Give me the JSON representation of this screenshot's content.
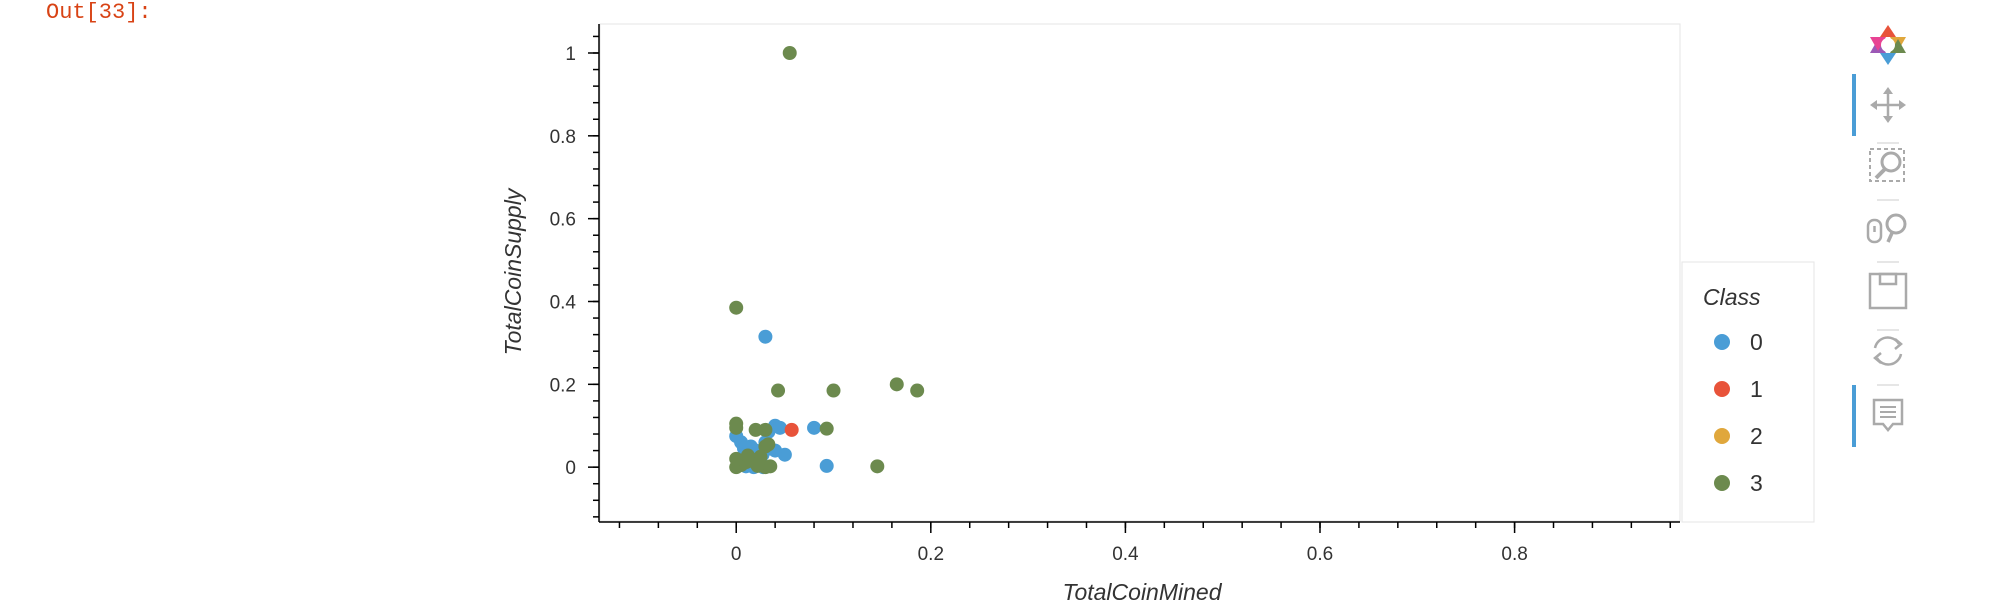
{
  "cell": {
    "prompt": "Out[33]:"
  },
  "toolbar": {
    "tools": [
      {
        "name": "bokeh-logo",
        "icon": "bokeh-logo-icon"
      },
      {
        "name": "pan",
        "icon": "pan-icon",
        "active": true
      },
      {
        "name": "box-zoom",
        "icon": "box-zoom-icon",
        "active": false
      },
      {
        "name": "wheel-zoom",
        "icon": "wheel-zoom-icon",
        "active": false
      },
      {
        "name": "save",
        "icon": "save-icon",
        "active": false
      },
      {
        "name": "reset",
        "icon": "reset-icon",
        "active": false
      },
      {
        "name": "hover",
        "icon": "hover-icon",
        "active": true
      }
    ]
  },
  "chart_data": {
    "type": "scatter",
    "xlabel": "TotalCoinMined",
    "ylabel": "TotalCoinSupply",
    "xlim": [
      -0.14,
      0.97
    ],
    "ylim": [
      -0.13,
      1.07
    ],
    "xticks": [
      0,
      0.2,
      0.4,
      0.6,
      0.8
    ],
    "xtick_labels": [
      "0",
      "0.2",
      "0.4",
      "0.6",
      "0.8"
    ],
    "yticks": [
      0,
      0.2,
      0.4,
      0.6,
      0.8,
      1
    ],
    "ytick_labels": [
      "0",
      "0.2",
      "0.4",
      "0.6",
      "0.8",
      "1"
    ],
    "legend": {
      "title": "Class",
      "placement": "right"
    },
    "series": [
      {
        "name": "0",
        "color": "#4a9dd6",
        "points": [
          [
            0.0,
            0.075
          ],
          [
            0.005,
            0.06
          ],
          [
            0.008,
            0.045
          ],
          [
            0.01,
            0.03
          ],
          [
            0.012,
            0.02
          ],
          [
            0.015,
            0.05
          ],
          [
            0.02,
            0.04
          ],
          [
            0.025,
            0.01
          ],
          [
            0.018,
            0.0
          ],
          [
            0.022,
            0.005
          ],
          [
            0.03,
            0.06
          ],
          [
            0.035,
            0.045
          ],
          [
            0.04,
            0.1
          ],
          [
            0.045,
            0.095
          ],
          [
            0.05,
            0.03
          ],
          [
            0.03,
            0.315
          ],
          [
            0.08,
            0.095
          ],
          [
            0.093,
            0.003
          ],
          [
            0.04,
            0.04
          ],
          [
            0.015,
            0.015
          ],
          [
            0.027,
            0.03
          ],
          [
            0.006,
            0.012
          ],
          [
            0.033,
            0.085
          ],
          [
            0.01,
            0.002
          ],
          [
            0.028,
            0.0
          ]
        ]
      },
      {
        "name": "1",
        "color": "#e8533a",
        "points": [
          [
            0.057,
            0.09
          ]
        ]
      },
      {
        "name": "2",
        "color": "#e0a73c",
        "points": []
      },
      {
        "name": "3",
        "color": "#6c8a4e",
        "points": [
          [
            0.055,
            1.0
          ],
          [
            0.0,
            0.385
          ],
          [
            0.043,
            0.185
          ],
          [
            0.1,
            0.185
          ],
          [
            0.165,
            0.2
          ],
          [
            0.186,
            0.185
          ],
          [
            0.0,
            0.105
          ],
          [
            0.0,
            0.095
          ],
          [
            0.02,
            0.09
          ],
          [
            0.03,
            0.09
          ],
          [
            0.093,
            0.093
          ],
          [
            0.145,
            0.002
          ],
          [
            0.0,
            0.0
          ],
          [
            0.005,
            0.005
          ],
          [
            0.01,
            0.012
          ],
          [
            0.015,
            0.018
          ],
          [
            0.02,
            0.01
          ],
          [
            0.025,
            0.025
          ],
          [
            0.03,
            0.0
          ],
          [
            0.035,
            0.002
          ],
          [
            0.0,
            0.02
          ],
          [
            0.012,
            0.028
          ],
          [
            0.03,
            0.05
          ],
          [
            0.033,
            0.055
          ],
          [
            0.022,
            0.003
          ]
        ]
      }
    ]
  }
}
